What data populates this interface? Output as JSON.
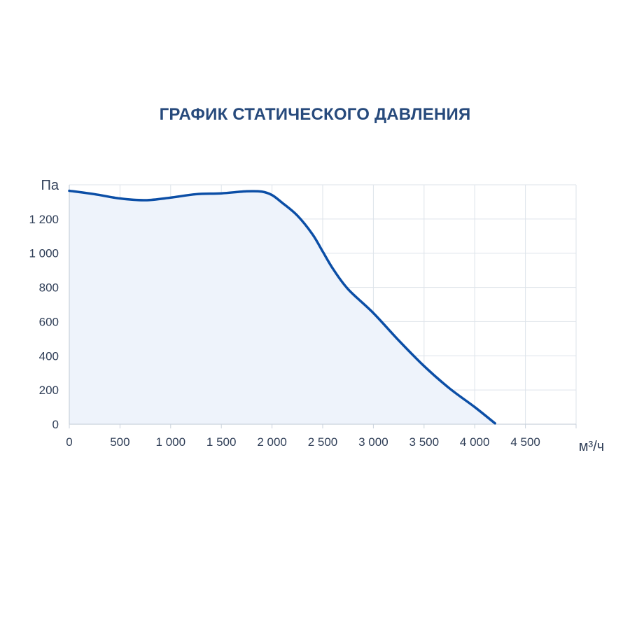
{
  "title": "ГРАФИК СТАТИЧЕСКОГО ДАВЛЕНИЯ",
  "chart_data": {
    "type": "area",
    "title": "ГРАФИК СТАТИЧЕСКОГО ДАВЛЕНИЯ",
    "xlabel": "м³/ч",
    "ylabel": "Па",
    "xlim": [
      0,
      5000
    ],
    "ylim": [
      0,
      1400
    ],
    "grid": true,
    "x_ticks": [
      0,
      500,
      1000,
      1500,
      2000,
      2500,
      3000,
      3500,
      4000,
      4500
    ],
    "x_tick_labels": [
      "0",
      "500",
      "1 000",
      "1 500",
      "2 000",
      "2 500",
      "3 000",
      "3 500",
      "4 000",
      "4 500"
    ],
    "y_ticks": [
      0,
      200,
      400,
      600,
      800,
      1000,
      1200
    ],
    "y_tick_labels": [
      "0",
      "200",
      "400",
      "600",
      "800",
      "1 000",
      "1 200"
    ],
    "colors": {
      "line": "#0b4ea6",
      "fill": "#eef3fb",
      "grid": "#dde3ea",
      "axis": "#c9d2dc",
      "title": "#274a7c"
    },
    "series": [
      {
        "x": [
          0,
          250,
          500,
          750,
          1000,
          1250,
          1500,
          1750,
          1900,
          2000,
          2100,
          2250,
          2400,
          2500,
          2600,
          2750,
          3000,
          3250,
          3500,
          3750,
          4000,
          4200
        ],
        "y": [
          1365,
          1345,
          1320,
          1310,
          1325,
          1345,
          1350,
          1362,
          1360,
          1340,
          1295,
          1220,
          1110,
          1010,
          910,
          790,
          650,
          490,
          340,
          210,
          100,
          5
        ]
      }
    ]
  }
}
